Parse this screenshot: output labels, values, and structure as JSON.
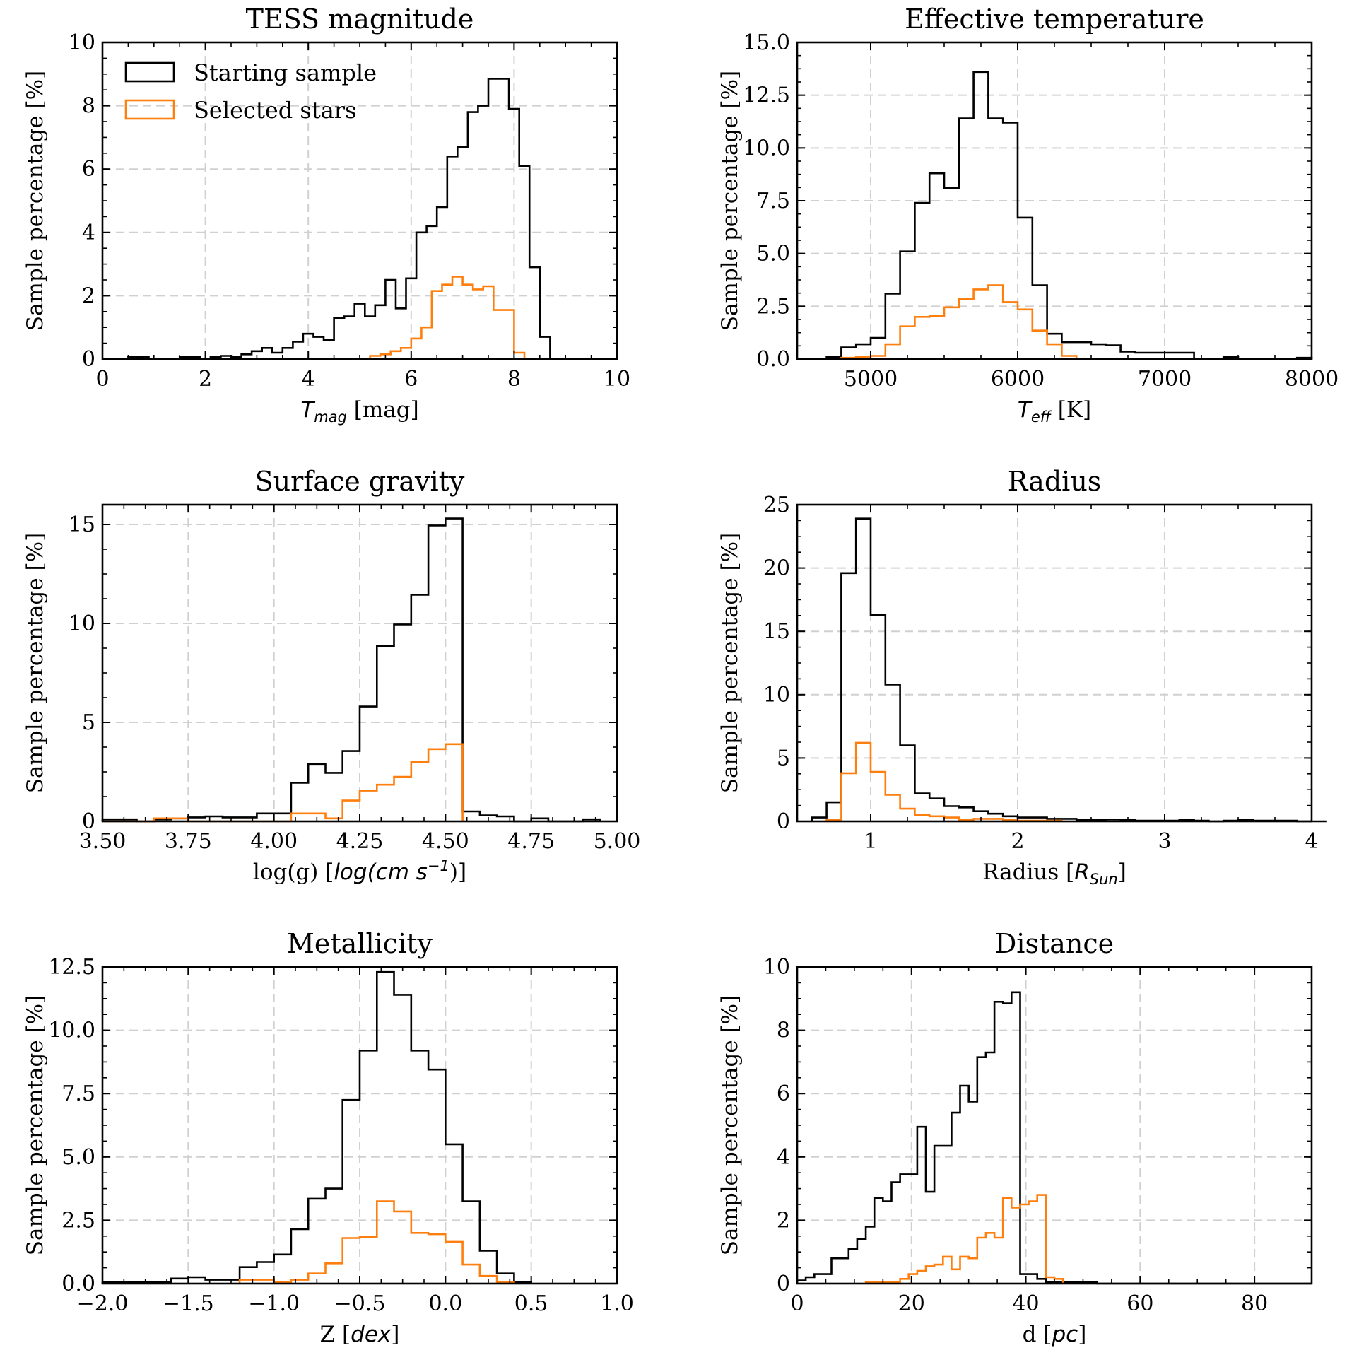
{
  "legend": {
    "starting": "Starting sample",
    "selected": "Selected stars"
  },
  "colors": {
    "starting": "#000000",
    "selected": "#ff7f0e",
    "grid": "#d0d0d0"
  },
  "chart_data": [
    {
      "id": "tmag",
      "type": "histogram",
      "title": "TESS magnitude",
      "xlabel": {
        "pre": "",
        "it": "T",
        "sub": "mag",
        "post": " [mag]"
      },
      "ylabel": "Sample percentage [%]",
      "xlim": [
        0,
        10
      ],
      "ylim": [
        0,
        10
      ],
      "xticks": [
        "0",
        "2",
        "4",
        "6",
        "8",
        "10"
      ],
      "yticks": [
        "0",
        "2",
        "4",
        "6",
        "8",
        "10"
      ],
      "grid": true,
      "legend": "upper-left",
      "bin_start": 0.5,
      "bin_width": 0.2,
      "series": [
        {
          "name": "Starting sample",
          "color": "#000000",
          "values": [
            0.06,
            0.06,
            0,
            0,
            0,
            0.06,
            0.06,
            0,
            0.06,
            0.1,
            0.06,
            0.15,
            0.25,
            0.35,
            0.2,
            0.35,
            0.55,
            0.8,
            0.7,
            0.6,
            1.3,
            1.35,
            1.75,
            1.35,
            1.7,
            2.5,
            1.6,
            2.55,
            4.0,
            4.2,
            4.8,
            6.4,
            6.7,
            7.8,
            8.0,
            8.85,
            8.85,
            7.9,
            6.1,
            2.9,
            0.7
          ]
        },
        {
          "name": "Selected stars",
          "color": "#ff7f0e",
          "bin_start": 5.2,
          "values": [
            0.1,
            0.15,
            0.25,
            0.35,
            0.65,
            1.0,
            2.15,
            2.35,
            2.6,
            2.35,
            2.2,
            2.3,
            1.55,
            1.55,
            0.2
          ]
        }
      ]
    },
    {
      "id": "teff",
      "type": "histogram",
      "title": "Effective temperature",
      "xlabel": {
        "pre": "",
        "it": "T",
        "sub": "eff",
        "post": " [K]"
      },
      "ylabel": "Sample percentage [%]",
      "xlim": [
        4500,
        8000
      ],
      "ylim": [
        0,
        15
      ],
      "xticks": [
        "5000",
        "6000",
        "7000",
        "8000"
      ],
      "yticks": [
        "0.0",
        "2.5",
        "5.0",
        "7.5",
        "10.0",
        "12.5",
        "15.0"
      ],
      "grid": true,
      "bin_start": 4700,
      "bin_width": 100,
      "series": [
        {
          "name": "Starting sample",
          "color": "#000000",
          "values": [
            0.1,
            0.55,
            0.7,
            1.0,
            3.1,
            5.1,
            7.4,
            8.8,
            8.1,
            11.4,
            13.6,
            11.4,
            11.2,
            6.7,
            3.5,
            1.2,
            0.8,
            0.8,
            0.7,
            0.65,
            0.35,
            0.3,
            0.3,
            0.3,
            0.3,
            0,
            0,
            0.1,
            0,
            0,
            0,
            0,
            0.06
          ]
        },
        {
          "name": "Selected stars",
          "color": "#ff7f0e",
          "bin_start": 4800,
          "values": [
            0.06,
            0.1,
            0.15,
            0.7,
            1.55,
            2.0,
            2.05,
            2.45,
            2.85,
            3.3,
            3.5,
            2.7,
            2.35,
            1.35,
            0.7,
            0.15
          ]
        }
      ]
    },
    {
      "id": "logg",
      "type": "histogram",
      "title": "Surface gravity",
      "xlabel": {
        "pre": "log(g) [",
        "it": "log(cm s",
        "sup": "−1",
        "post2": ")]"
      },
      "ylabel": "Sample percentage [%]",
      "xlim": [
        3.5,
        5.0
      ],
      "ylim": [
        0,
        16
      ],
      "xticks": [
        "3.50",
        "3.75",
        "4.00",
        "4.25",
        "4.50",
        "4.75",
        "5.00"
      ],
      "yticks": [
        "0",
        "5",
        "10",
        "15"
      ],
      "grid": true,
      "bin_start": 3.5,
      "bin_width": 0.05,
      "series": [
        {
          "name": "Starting sample",
          "color": "#000000",
          "values": [
            0.1,
            0.1,
            0,
            0.1,
            0.15,
            0.2,
            0.25,
            0.2,
            0.2,
            0.4,
            0.4,
            1.95,
            2.9,
            2.45,
            3.55,
            5.8,
            8.85,
            9.95,
            11.45,
            14.95,
            15.3,
            0.5,
            0.3,
            0.25,
            0,
            0.15,
            0,
            0,
            0.1
          ]
        },
        {
          "name": "Selected stars",
          "color": "#ff7f0e",
          "values": [
            0,
            0,
            0,
            0.15,
            0.15,
            0,
            0,
            0,
            0,
            0,
            0,
            0.4,
            0.4,
            0.15,
            1.05,
            1.55,
            1.85,
            2.25,
            3.0,
            3.65,
            3.9
          ]
        }
      ]
    },
    {
      "id": "radius",
      "type": "histogram",
      "title": "Radius",
      "xlabel": {
        "pre": "Radius [",
        "it": "R",
        "sub": "Sun",
        "post": "]"
      },
      "ylabel": "Sample percentage [%]",
      "xlim": [
        0.5,
        4.0
      ],
      "ylim": [
        0,
        25
      ],
      "xticks": [
        "1",
        "2",
        "3",
        "4"
      ],
      "yticks": [
        "0",
        "5",
        "10",
        "15",
        "20",
        "25"
      ],
      "grid": true,
      "bin_start": 0.6,
      "bin_width": 0.1,
      "series": [
        {
          "name": "Starting sample",
          "color": "#000000",
          "values": [
            0.3,
            1.5,
            19.6,
            23.9,
            16.3,
            10.8,
            6.0,
            2.2,
            1.8,
            1.2,
            1.1,
            0.8,
            0.6,
            0.4,
            0.3,
            0.3,
            0.2,
            0.2,
            0.1,
            0.1,
            0.15,
            0.1,
            0.05,
            0.05,
            0.05,
            0.1,
            0.05,
            0,
            0.05,
            0.1,
            0.05,
            0.05,
            0.05,
            0,
            0
          ]
        },
        {
          "name": "Selected stars",
          "color": "#ff7f0e",
          "bin_start": 0.7,
          "values": [
            0.1,
            3.8,
            6.2,
            3.9,
            2.1,
            1.0,
            0.5,
            0.4,
            0.3,
            0.1,
            0.2,
            0.2,
            0.1,
            0.05,
            0.05,
            0.05
          ]
        }
      ]
    },
    {
      "id": "metal",
      "type": "histogram",
      "title": "Metallicity",
      "xlabel": {
        "pre": "Z [",
        "it": "dex",
        "post": "]"
      },
      "ylabel": "Sample percentage [%]",
      "xlim": [
        -2.0,
        1.0
      ],
      "ylim": [
        0,
        12.5
      ],
      "xticks": [
        "−2.0",
        "−1.5",
        "−1.0",
        "−0.5",
        "0.0",
        "0.5",
        "1.0"
      ],
      "yticks": [
        "0.0",
        "2.5",
        "5.0",
        "7.5",
        "10.0",
        "12.5"
      ],
      "grid": true,
      "bin_start": -2.0,
      "bin_width": 0.1,
      "series": [
        {
          "name": "Starting sample",
          "color": "#000000",
          "values": [
            0.05,
            0.05,
            0.05,
            0.05,
            0.2,
            0.25,
            0.15,
            0.15,
            0.65,
            0.85,
            1.15,
            2.15,
            3.35,
            3.75,
            7.25,
            9.2,
            12.3,
            11.4,
            9.2,
            8.45,
            5.5,
            3.25,
            1.3,
            0.4,
            0.05
          ]
        },
        {
          "name": "Selected stars",
          "color": "#ff7f0e",
          "bin_start": -1.2,
          "values": [
            0.15,
            0.15,
            0.05,
            0.15,
            0.4,
            0.8,
            1.8,
            1.85,
            3.25,
            2.85,
            2.0,
            1.95,
            1.65,
            0.75,
            0.3,
            0.05
          ]
        }
      ]
    },
    {
      "id": "dist",
      "type": "histogram",
      "title": "Distance",
      "xlabel": {
        "pre": "d [",
        "it": "pc",
        "post": "]"
      },
      "ylabel": "Sample percentage [%]",
      "xlim": [
        0,
        90
      ],
      "ylim": [
        0,
        10
      ],
      "xticks": [
        "0",
        "20",
        "40",
        "60",
        "80"
      ],
      "yticks": [
        "0",
        "2",
        "4",
        "6",
        "8",
        "10"
      ],
      "grid": true,
      "bin_start": 0,
      "bin_width": 1.5,
      "series": [
        {
          "name": "Starting sample",
          "color": "#000000",
          "values": [
            0.1,
            0.2,
            0.3,
            0.3,
            0.8,
            0.8,
            1.1,
            1.4,
            1.8,
            2.7,
            2.6,
            3.2,
            3.45,
            3.45,
            4.95,
            2.9,
            4.35,
            4.35,
            5.4,
            6.25,
            5.75,
            7.15,
            7.3,
            8.9,
            8.85,
            9.2,
            0.3,
            0.3,
            0.15,
            0.05,
            0.05,
            0.05,
            0.05,
            0.05,
            0.05,
            0,
            0,
            0,
            0,
            0,
            0,
            0,
            0,
            0,
            0,
            0,
            0,
            0,
            0,
            0,
            0,
            0,
            0,
            0,
            0,
            0,
            0,
            0,
            0,
            0
          ]
        },
        {
          "name": "Selected stars",
          "color": "#ff7f0e",
          "bin_start": 12,
          "values": [
            0.05,
            0.05,
            0.05,
            0.05,
            0.15,
            0.3,
            0.4,
            0.55,
            0.6,
            0.85,
            0.45,
            0.85,
            0.8,
            1.45,
            1.6,
            1.45,
            2.7,
            2.4,
            2.5,
            2.6,
            2.8,
            0.2,
            0.15
          ]
        }
      ]
    }
  ]
}
